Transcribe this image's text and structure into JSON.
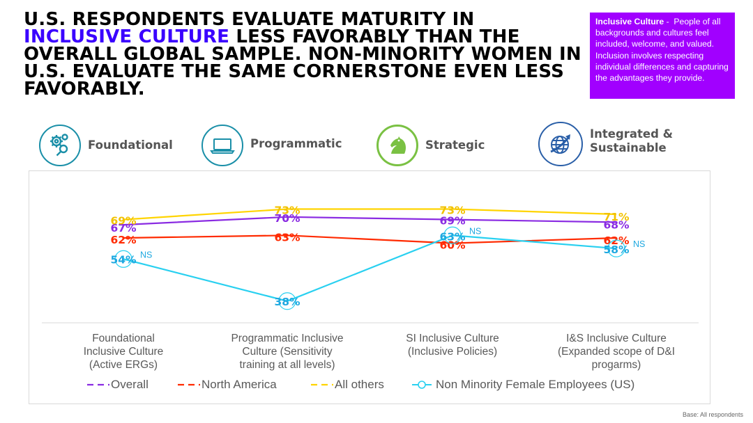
{
  "title": {
    "part1": "U.S. RESPONDENTS EVALUATE MATURITY IN",
    "highlight": "INCLUSIVE CULTURE",
    "part2": "LESS FAVORABLY THAN THE OVERALL GLOBAL SAMPLE. NON-MINORITY WOMEN IN U.S. EVALUATE THE SAME CORNERSTONE EVEN LESS FAVORABLY."
  },
  "definition": {
    "term": "Inclusive Culture",
    "separator": " -  ",
    "text": "People of all backgrounds and cultures feel included, welcome, and valued. Inclusion involves respecting individual differences and capturing the advantages they provide."
  },
  "stages": [
    {
      "label": "Foundational",
      "icon": "gears-icon",
      "color": "#1a8fa8"
    },
    {
      "label": "Programmatic",
      "icon": "laptop-icon",
      "color": "#1a8fa8"
    },
    {
      "label": "Strategic",
      "icon": "chess-knight-icon",
      "color": "#7ac143"
    },
    {
      "label": "Integrated & Sustainable",
      "icon": "globe-arrow-icon",
      "color": "#2a5fa8"
    }
  ],
  "chart_data": {
    "type": "line",
    "categories": [
      "Foundational Inclusive Culture (Active ERGs)",
      "Programmatic Inclusive Culture (Sensitivity training at all levels)",
      "SI Inclusive Culture (Inclusive Policies)",
      "I&S Inclusive Culture (Expanded scope of D&I progarms)"
    ],
    "series": [
      {
        "name": "Overall",
        "color": "#8a2be2",
        "dashed": true,
        "values": [
          67,
          70,
          69,
          68
        ]
      },
      {
        "name": "North America",
        "color": "#ff2a00",
        "dashed": true,
        "values": [
          62,
          63,
          60,
          62
        ]
      },
      {
        "name": "All others",
        "color": "#ffd400",
        "label_color": "#f2c200",
        "dashed": true,
        "values": [
          69,
          73,
          73,
          71
        ]
      },
      {
        "name": "Non Minority Female Employees (US)",
        "color": "#29d0f0",
        "label_color": "#1ea8e0",
        "dashed": false,
        "circle_markers": true,
        "values": [
          54,
          38,
          63,
          58
        ],
        "annotations": [
          "NS",
          "",
          "NS",
          "NS"
        ]
      }
    ],
    "value_suffix": "%",
    "ylim": [
      30,
      80
    ],
    "grid": false,
    "legend_position": "bottom"
  },
  "footnote": "Base: All respondents"
}
